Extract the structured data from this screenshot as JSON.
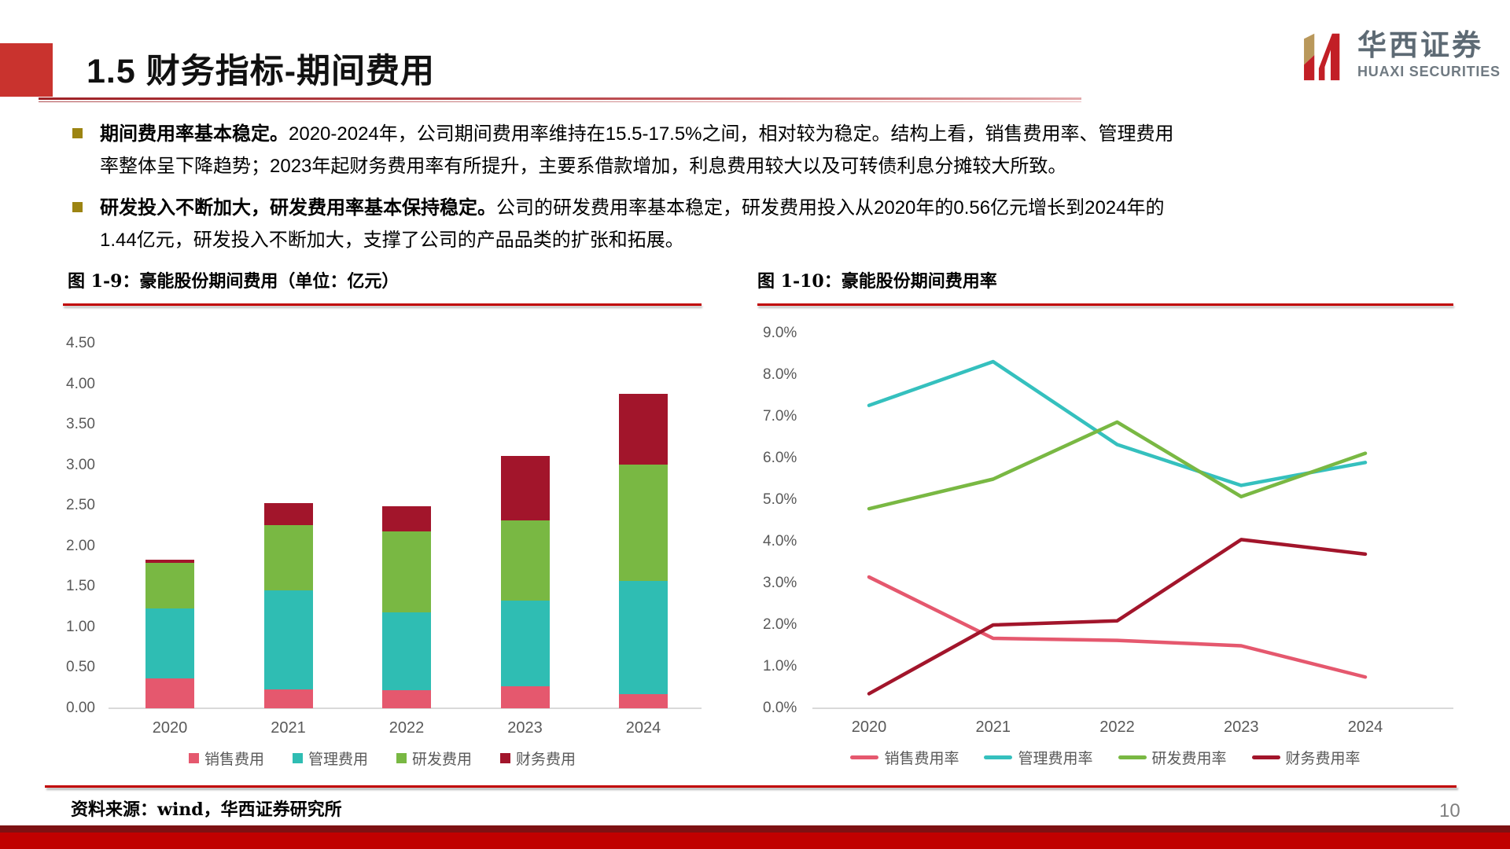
{
  "header": {
    "title": "1.5 财务指标-期间费用",
    "logo": {
      "cn": "华西证券",
      "en": "HUAXI SECURITIES"
    }
  },
  "bullets": [
    {
      "lead": "期间费用率基本稳定。",
      "text": "2020-2024年，公司期间费用率维持在15.5-17.5%之间，相对较为稳定。结构上看，销售费用率、管理费用率整体呈下降趋势；2023年起财务费用率有所提升，主要系借款增加，利息费用较大以及可转债利息分摊较大所致。"
    },
    {
      "lead": "研发投入不断加大，研发费用率基本保持稳定。",
      "text": "公司的研发费用率基本稳定，研发费用投入从2020年的0.56亿元增长到2024年的1.44亿元，研发投入不断加大，支撑了公司的产品品类的扩张和拓展。"
    }
  ],
  "footer": {
    "source": "资料来源：wind，华西证券研究所",
    "page": "10"
  },
  "chart_data": [
    {
      "type": "bar",
      "stacked": true,
      "title": "图 1-9：豪能股份期间费用（单位：亿元）",
      "categories": [
        "2020",
        "2021",
        "2022",
        "2023",
        "2024"
      ],
      "series": [
        {
          "name": "销售费用",
          "color": "#E5586E",
          "values": [
            0.37,
            0.23,
            0.22,
            0.27,
            0.17
          ]
        },
        {
          "name": "管理费用",
          "color": "#2FBDB3",
          "values": [
            0.86,
            1.22,
            0.96,
            1.06,
            1.4
          ]
        },
        {
          "name": "研发费用",
          "color": "#79B843",
          "values": [
            0.56,
            0.81,
            1.0,
            0.99,
            1.44
          ]
        },
        {
          "name": "财务费用",
          "color": "#A2152B",
          "values": [
            0.04,
            0.27,
            0.31,
            0.79,
            0.87
          ]
        }
      ],
      "ylim": [
        0,
        4.5
      ],
      "ytick_step": 0.5,
      "yticks": [
        "0.00",
        "0.50",
        "1.00",
        "1.50",
        "2.00",
        "2.50",
        "3.00",
        "3.50",
        "4.00",
        "4.50"
      ],
      "grid": false,
      "legend_position": "bottom"
    },
    {
      "type": "line",
      "title": "图 1-10：豪能股份期间费用率",
      "x": [
        "2020",
        "2021",
        "2022",
        "2023",
        "2024"
      ],
      "series": [
        {
          "name": "销售费用率",
          "color": "#E5586E",
          "values": [
            3.15,
            1.68,
            1.63,
            1.5,
            0.75
          ]
        },
        {
          "name": "管理费用率",
          "color": "#35C0BE",
          "values": [
            7.27,
            8.32,
            6.33,
            5.35,
            5.9
          ]
        },
        {
          "name": "研发费用率",
          "color": "#79B843",
          "values": [
            4.79,
            5.5,
            6.87,
            5.08,
            6.12
          ]
        },
        {
          "name": "财务费用率",
          "color": "#A2152B",
          "values": [
            0.35,
            2.0,
            2.1,
            4.05,
            3.7
          ]
        }
      ],
      "ylim": [
        0,
        9
      ],
      "ytick_step": 1,
      "yticks": [
        "0.0%",
        "1.0%",
        "2.0%",
        "3.0%",
        "4.0%",
        "5.0%",
        "6.0%",
        "7.0%",
        "8.0%",
        "9.0%"
      ],
      "grid": false,
      "legend_position": "bottom"
    }
  ]
}
